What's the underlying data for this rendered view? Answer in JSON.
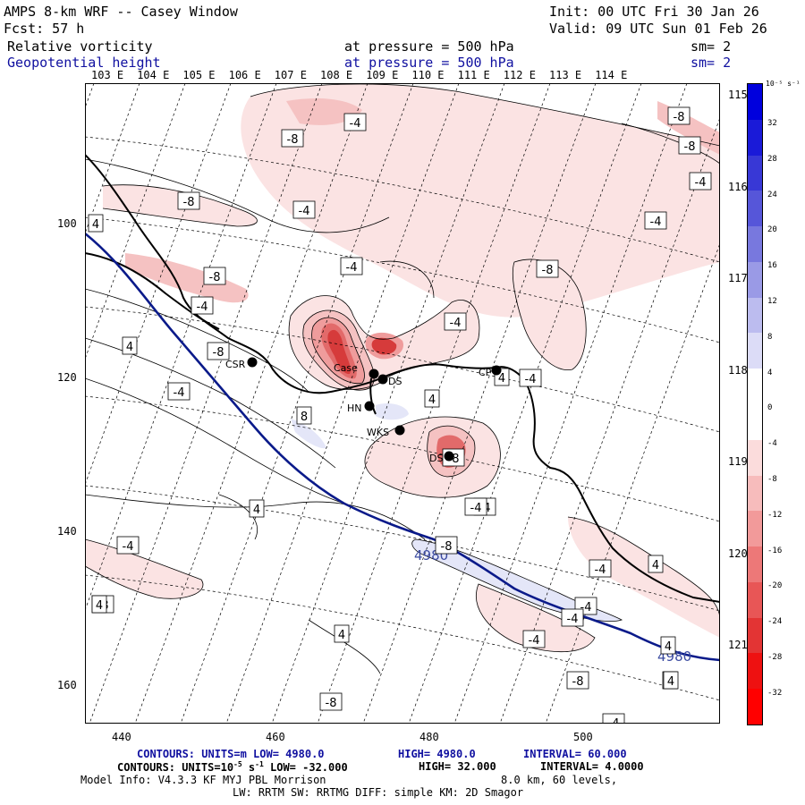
{
  "header": {
    "title": "AMPS 8-km WRF -- Casey Window",
    "init": "Init: 00 UTC Fri 30 Jan 26",
    "fcst": "Fcst:    57 h",
    "valid": "Valid: 09 UTC Sun 01 Feb 26",
    "field1": "Relative vorticity",
    "field1_pressure": "at pressure =  500 hPa",
    "field1_sm": "sm= 2",
    "field2": "Geopotential height",
    "field2_pressure": "at pressure =  500 hPa",
    "field2_sm": "sm= 2"
  },
  "top_lon_labels": [
    "103 E",
    "104 E",
    "105 E",
    "106 E",
    "107 E",
    "108 E",
    "109 E",
    "110 E",
    "111 E",
    "112 E",
    "113 E",
    "114 E"
  ],
  "right_lon_labels": [
    "115 E",
    "116 E",
    "117 E",
    "118 E",
    "119 E",
    "120 E",
    "121 E"
  ],
  "y_axis_ticks": [
    "100",
    "120",
    "140",
    "160"
  ],
  "x_axis_ticks": [
    "440",
    "460",
    "480",
    "500"
  ],
  "colorbar": {
    "unit": "10⁻⁵ s⁻¹",
    "labels": [
      "32",
      "28",
      "24",
      "20",
      "16",
      "12",
      "8",
      "4",
      "0",
      "-4",
      "-8",
      "-12",
      "-16",
      "-20",
      "-24",
      "-28",
      "-32"
    ]
  },
  "stations": [
    "CSR",
    "Case",
    "DS",
    "HN",
    "WKS",
    "CP",
    "DS"
  ],
  "contour_labels": [
    "-4",
    "-8",
    "-4",
    "-8",
    "-4",
    "4",
    "-8",
    "-4",
    "-8",
    "-8",
    "-4",
    "-4",
    "-8",
    "-4",
    "-4",
    "4",
    "4",
    "8",
    "-8",
    "-8",
    "-4",
    "4",
    "-4",
    "4",
    "-4",
    "-8",
    "-4",
    "4",
    "-8",
    "-4",
    "4",
    "-4",
    "4",
    "-8",
    "-4",
    "-8",
    "4",
    "-4",
    "-4",
    "4",
    "4"
  ],
  "height_labels": [
    "4980",
    "4980"
  ],
  "footer": {
    "line1_a": "CONTOURS:  UNITS=m  LOW=  4980.0",
    "line1_b": "HIGH=  4980.0",
    "line1_c": "INTERVAL=   60.000",
    "line2_a": "CONTOURS:  UNITS=10",
    "line2_sup1": "-5",
    "line2_b": " s",
    "line2_sup2": "-1",
    "line2_c": "  LOW= -32.000",
    "line2_d": "HIGH=  32.000",
    "line2_e": "INTERVAL=   4.0000",
    "line3_a": "Model Info: V4.3.3   KF      MYJ PBL  Morrison",
    "line3_b": "8.0 km,  60 levels,",
    "line4": "LW: RRTM SW: RRTMG   DIFF: simple KM: 2D Smagor"
  },
  "colors": {
    "heightLine": "#0a1a8a",
    "coast": "#000000",
    "neg1": "#fbe3e3",
    "neg2": "#f5c2c2",
    "neg3": "#ef9c9c",
    "neg4": "#e26a6a",
    "neg5": "#d63b3b",
    "pos1": "#e4e6f8"
  }
}
